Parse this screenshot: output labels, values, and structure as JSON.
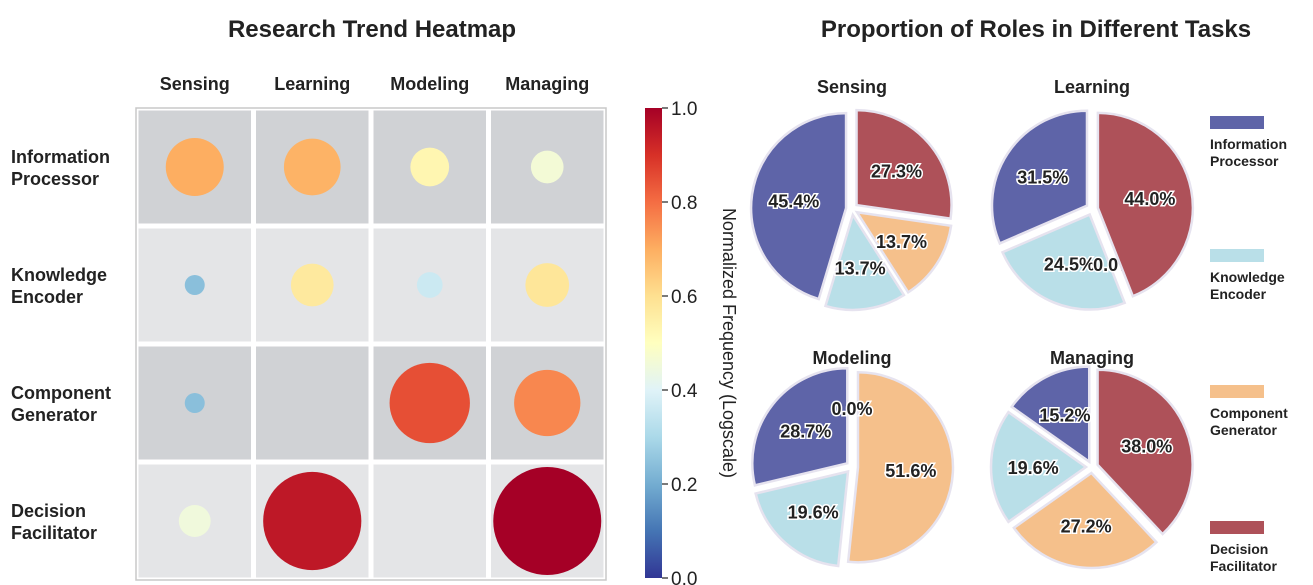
{
  "heatmap": {
    "title": "Research Trend Heatmap",
    "tasks": [
      "Sensing",
      "Learning",
      "Modeling",
      "Managing"
    ],
    "roles": [
      "Information\nProcessor",
      "Knowledge\nEncoder",
      "Component\nGenerator",
      "Decision\nFacilitator"
    ],
    "colorbar_label": "Normalized Frequency (Logscale)",
    "colorbar_ticks": [
      "0.0",
      "0.2",
      "0.4",
      "0.6",
      "0.8",
      "1.0"
    ],
    "row_bg_colors": [
      "#d0d2d5",
      "#e4e5e7",
      "#d0d2d5",
      "#e4e5e7"
    ]
  },
  "pies": {
    "title": "Proportion of Roles in Different Tasks",
    "legend": [
      {
        "label": "Information\nProcessor",
        "color": "#5e64a8"
      },
      {
        "label": "Knowledge\nEncoder",
        "color": "#b9dfe8"
      },
      {
        "label": "Component\nGenerator",
        "color": "#f5c08b"
      },
      {
        "label": "Decision\nFacilitator",
        "color": "#ae5159"
      }
    ]
  },
  "chart_data": [
    {
      "type": "heatmap",
      "title": "Research Trend Heatmap",
      "x": [
        "Sensing",
        "Learning",
        "Modeling",
        "Managing"
      ],
      "y": [
        "Information Processor",
        "Knowledge Encoder",
        "Component Generator",
        "Decision Facilitator"
      ],
      "values": [
        [
          0.7,
          0.69,
          0.53,
          0.46
        ],
        [
          0.24,
          0.57,
          0.36,
          0.58
        ],
        [
          0.24,
          null,
          0.85,
          0.76
        ],
        [
          0.45,
          0.95,
          null,
          1.0
        ]
      ],
      "colorbar": {
        "label": "Normalized Frequency (Logscale)",
        "range": [
          0.0,
          1.0
        ],
        "colormap": "RdYlBu_r"
      }
    },
    {
      "type": "pie",
      "title": "Sensing",
      "labels": [
        "Information Processor",
        "Knowledge Encoder",
        "Component Generator",
        "Decision Facilitator"
      ],
      "values": [
        45.4,
        13.7,
        13.7,
        27.3
      ],
      "value_labels": [
        "45.4%",
        "13.7%",
        "13.7%",
        "27.3%"
      ]
    },
    {
      "type": "pie",
      "title": "Learning",
      "labels": [
        "Information Processor",
        "Knowledge Encoder",
        "Component Generator",
        "Decision Facilitator"
      ],
      "values": [
        31.5,
        24.5,
        0.0,
        44.0
      ],
      "value_labels": [
        "31.5%",
        "24.5%",
        "0.0%",
        "44.0%"
      ]
    },
    {
      "type": "pie",
      "title": "Modeling",
      "labels": [
        "Information Processor",
        "Knowledge Encoder",
        "Component Generator",
        "Decision Facilitator"
      ],
      "values": [
        28.7,
        19.6,
        51.6,
        0.0
      ],
      "value_labels": [
        "28.7%",
        "19.6%",
        "51.6%",
        "0.0%"
      ]
    },
    {
      "type": "pie",
      "title": "Managing",
      "labels": [
        "Information Processor",
        "Knowledge Encoder",
        "Component Generator",
        "Decision Facilitator"
      ],
      "values": [
        15.2,
        19.6,
        27.2,
        38.0
      ],
      "value_labels": [
        "15.2%",
        "19.6%",
        "27.2%",
        "38.0%"
      ]
    }
  ]
}
